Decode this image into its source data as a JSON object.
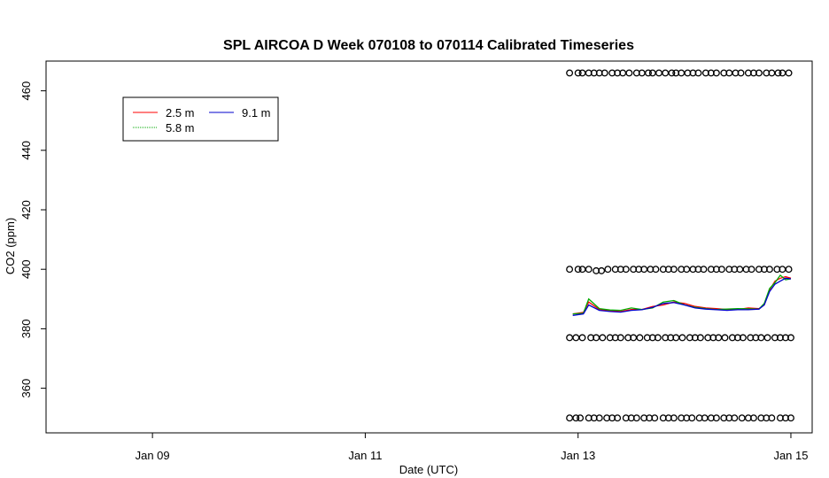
{
  "chart_data": {
    "type": "line",
    "title": "SPL AIRCOA D  Week 070108 to 070114  Calibrated Timeseries",
    "xlabel": "Date (UTC)",
    "ylabel": "CO2 (ppm)",
    "x_ticks": [
      "Jan 09",
      "Jan 11",
      "Jan 13",
      "Jan 15"
    ],
    "y_ticks": [
      "360",
      "380",
      "400",
      "420",
      "440",
      "460"
    ],
    "xlim_days": [
      8.0,
      15.2
    ],
    "ylim": [
      345,
      470
    ],
    "legend": {
      "position": "top-left",
      "entries": [
        "2.5 m",
        "5.8 m",
        "9.1 m"
      ]
    },
    "series": [
      {
        "name": "2.5 m",
        "color": "#ff0000",
        "x": [
          12.95,
          13.05,
          13.1,
          13.2,
          13.3,
          13.4,
          13.5,
          13.6,
          13.7,
          13.8,
          13.9,
          14.0,
          14.1,
          14.2,
          14.3,
          14.4,
          14.5,
          14.6,
          14.7,
          14.75,
          14.8,
          14.85,
          14.9,
          14.95,
          15.0
        ],
        "y": [
          385,
          385.5,
          389,
          386.5,
          386,
          385.8,
          386.5,
          386.5,
          387.5,
          388,
          389,
          388.5,
          387.5,
          387,
          386.8,
          386.5,
          386.5,
          387,
          386.8,
          388,
          393,
          396,
          397,
          397.5,
          397
        ]
      },
      {
        "name": "5.8 m",
        "color": "#00aa00",
        "x": [
          12.95,
          13.05,
          13.1,
          13.2,
          13.3,
          13.4,
          13.5,
          13.6,
          13.7,
          13.8,
          13.9,
          14.0,
          14.1,
          14.2,
          14.3,
          14.4,
          14.5,
          14.6,
          14.7,
          14.75,
          14.8,
          14.85,
          14.9,
          14.95,
          15.0
        ],
        "y": [
          385,
          385.2,
          390,
          386.8,
          386.3,
          386.2,
          387,
          386.5,
          387,
          389,
          389.5,
          388,
          387.2,
          386.8,
          386.5,
          386.6,
          386.8,
          386.7,
          386.6,
          388.5,
          393.5,
          395.5,
          398,
          396.5,
          396.8
        ]
      },
      {
        "name": "9.1 m",
        "color": "#0000cc",
        "x": [
          12.95,
          13.05,
          13.1,
          13.2,
          13.3,
          13.4,
          13.5,
          13.6,
          13.7,
          13.8,
          13.9,
          14.0,
          14.1,
          14.2,
          14.3,
          14.4,
          14.5,
          14.6,
          14.7,
          14.75,
          14.8,
          14.85,
          14.9,
          14.95,
          15.0
        ],
        "y": [
          384.5,
          385,
          388,
          386.2,
          385.8,
          385.6,
          386.2,
          386.4,
          387.2,
          388.5,
          388.8,
          388,
          387,
          386.6,
          386.4,
          386.2,
          386.4,
          386.4,
          386.6,
          388,
          392.5,
          395,
          396,
          397,
          396.8
        ]
      },
      {
        "name": "",
        "type": "points",
        "color": "#000000",
        "x": [
          12.92,
          13.0,
          13.04,
          13.1,
          13.15,
          13.2,
          13.25,
          13.32,
          13.37,
          13.42,
          13.48,
          13.55,
          13.6,
          13.66,
          13.7,
          13.76,
          13.82,
          13.88,
          13.92,
          13.97,
          14.03,
          14.08,
          14.13,
          14.2,
          14.25,
          14.3,
          14.37,
          14.42,
          14.48,
          14.53,
          14.6,
          14.65,
          14.7,
          14.77,
          14.82,
          14.88,
          14.92,
          14.98
        ],
        "y": [
          466,
          466,
          466,
          466,
          466,
          466,
          466,
          466,
          466,
          466,
          466,
          466,
          466,
          466,
          466,
          466,
          466,
          466,
          466,
          466,
          466,
          466,
          466,
          466,
          466,
          466,
          466,
          466,
          466,
          466,
          466,
          466,
          466,
          466,
          466,
          466,
          466,
          466
        ]
      },
      {
        "name": "",
        "type": "points",
        "color": "#000000",
        "x": [
          12.92,
          13.0,
          13.04,
          13.1,
          13.17,
          13.22,
          13.28,
          13.35,
          13.4,
          13.45,
          13.52,
          13.57,
          13.62,
          13.68,
          13.73,
          13.8,
          13.85,
          13.9,
          13.97,
          14.02,
          14.08,
          14.13,
          14.18,
          14.25,
          14.3,
          14.35,
          14.42,
          14.47,
          14.52,
          14.58,
          14.63,
          14.7,
          14.75,
          14.8,
          14.87,
          14.92,
          14.98
        ],
        "y": [
          400,
          400,
          400,
          400,
          399.5,
          399.5,
          400,
          400,
          400,
          400,
          400,
          400,
          400,
          400,
          400,
          400,
          400,
          400,
          400,
          400,
          400,
          400,
          400,
          400,
          400,
          400,
          400,
          400,
          400,
          400,
          400,
          400,
          400,
          400,
          400,
          400,
          400
        ]
      },
      {
        "name": "",
        "type": "points",
        "color": "#000000",
        "x": [
          12.92,
          12.98,
          13.04,
          13.12,
          13.17,
          13.23,
          13.3,
          13.35,
          13.4,
          13.47,
          13.52,
          13.58,
          13.65,
          13.7,
          13.75,
          13.82,
          13.87,
          13.92,
          13.98,
          14.05,
          14.1,
          14.15,
          14.22,
          14.27,
          14.32,
          14.38,
          14.45,
          14.5,
          14.55,
          14.62,
          14.67,
          14.72,
          14.78,
          14.85,
          14.9,
          14.95,
          15.0
        ],
        "y": [
          377,
          377,
          377,
          377,
          377,
          377,
          377,
          377,
          377,
          377,
          377,
          377,
          377,
          377,
          377,
          377,
          377,
          377,
          377,
          377,
          377,
          377,
          377,
          377,
          377,
          377,
          377,
          377,
          377,
          377,
          377,
          377,
          377,
          377,
          377,
          377,
          377
        ]
      },
      {
        "name": "",
        "type": "points",
        "color": "#000000",
        "x": [
          12.92,
          12.98,
          13.02,
          13.1,
          13.15,
          13.2,
          13.27,
          13.32,
          13.37,
          13.45,
          13.5,
          13.55,
          13.62,
          13.67,
          13.72,
          13.8,
          13.85,
          13.9,
          13.97,
          14.02,
          14.07,
          14.14,
          14.19,
          14.25,
          14.3,
          14.37,
          14.42,
          14.47,
          14.54,
          14.6,
          14.65,
          14.72,
          14.77,
          14.82,
          14.9,
          14.95,
          15.0
        ],
        "y": [
          350,
          350,
          350,
          350,
          350,
          350,
          350,
          350,
          350,
          350,
          350,
          350,
          350,
          350,
          350,
          350,
          350,
          350,
          350,
          350,
          350,
          350,
          350,
          350,
          350,
          350,
          350,
          350,
          350,
          350,
          350,
          350,
          350,
          350,
          350,
          350,
          350
        ]
      }
    ]
  }
}
